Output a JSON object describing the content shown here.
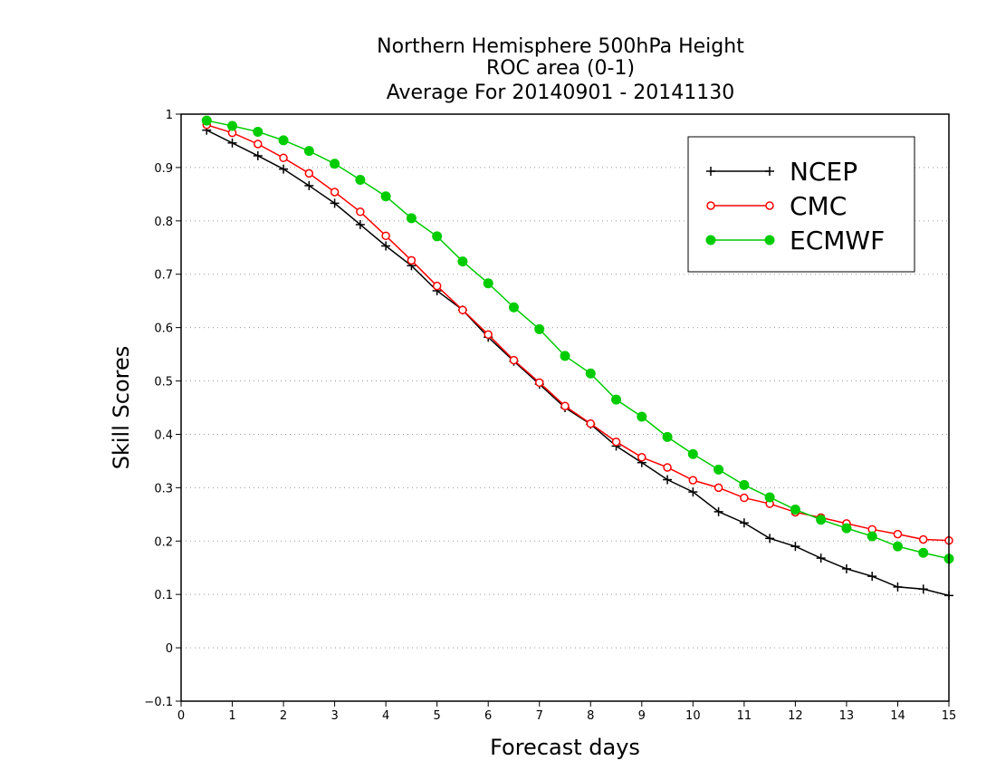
{
  "chart_data": {
    "type": "line",
    "title": [
      "Northern Hemisphere 500hPa Height",
      "ROC area (0-1)",
      "Average For 20140901 - 20141130"
    ],
    "xlabel": "Forecast days",
    "ylabel": "Skill Scores",
    "xlim": [
      0,
      15
    ],
    "ylim": [
      -0.1,
      1
    ],
    "xticks": [
      "0",
      "1",
      "2",
      "3",
      "4",
      "5",
      "6",
      "7",
      "8",
      "9",
      "10",
      "11",
      "12",
      "13",
      "14",
      "15"
    ],
    "yticks": [
      "−0.1",
      "0",
      "0.1",
      "0.2",
      "0.3",
      "0.4",
      "0.5",
      "0.6",
      "0.7",
      "0.8",
      "0.9",
      "1"
    ],
    "grid": "horizontal dotted",
    "legend_position": "top-right",
    "x": [
      0.5,
      1,
      1.5,
      2,
      2.5,
      3,
      3.5,
      4,
      4.5,
      5,
      5.5,
      6,
      6.5,
      7,
      7.5,
      8,
      8.5,
      9,
      9.5,
      10,
      10.5,
      11,
      11.5,
      12,
      12.5,
      13,
      13.5,
      14,
      14.5,
      15
    ],
    "series": [
      {
        "name": "NCEP",
        "color": "#000000",
        "marker": "plus",
        "values": [
          0.97,
          0.946,
          0.922,
          0.897,
          0.866,
          0.833,
          0.793,
          0.753,
          0.716,
          0.669,
          0.633,
          0.582,
          0.537,
          0.494,
          0.45,
          0.419,
          0.378,
          0.347,
          0.315,
          0.292,
          0.255,
          0.234,
          0.205,
          0.19,
          0.168,
          0.148,
          0.134,
          0.114,
          0.11,
          0.098
        ]
      },
      {
        "name": "CMC",
        "color": "#ff0000",
        "marker": "open-circle",
        "values": [
          0.98,
          0.965,
          0.944,
          0.918,
          0.889,
          0.854,
          0.817,
          0.772,
          0.726,
          0.678,
          0.633,
          0.587,
          0.539,
          0.497,
          0.453,
          0.42,
          0.386,
          0.357,
          0.338,
          0.314,
          0.3,
          0.281,
          0.27,
          0.254,
          0.244,
          0.233,
          0.222,
          0.213,
          0.203,
          0.201
        ]
      },
      {
        "name": "ECMWF",
        "color": "#00cc00",
        "marker": "filled-circle",
        "values": [
          0.988,
          0.978,
          0.967,
          0.951,
          0.931,
          0.907,
          0.877,
          0.846,
          0.805,
          0.771,
          0.724,
          0.683,
          0.638,
          0.597,
          0.547,
          0.514,
          0.465,
          0.433,
          0.395,
          0.363,
          0.334,
          0.305,
          0.282,
          0.259,
          0.24,
          0.224,
          0.209,
          0.19,
          0.178,
          0.167
        ]
      }
    ]
  }
}
